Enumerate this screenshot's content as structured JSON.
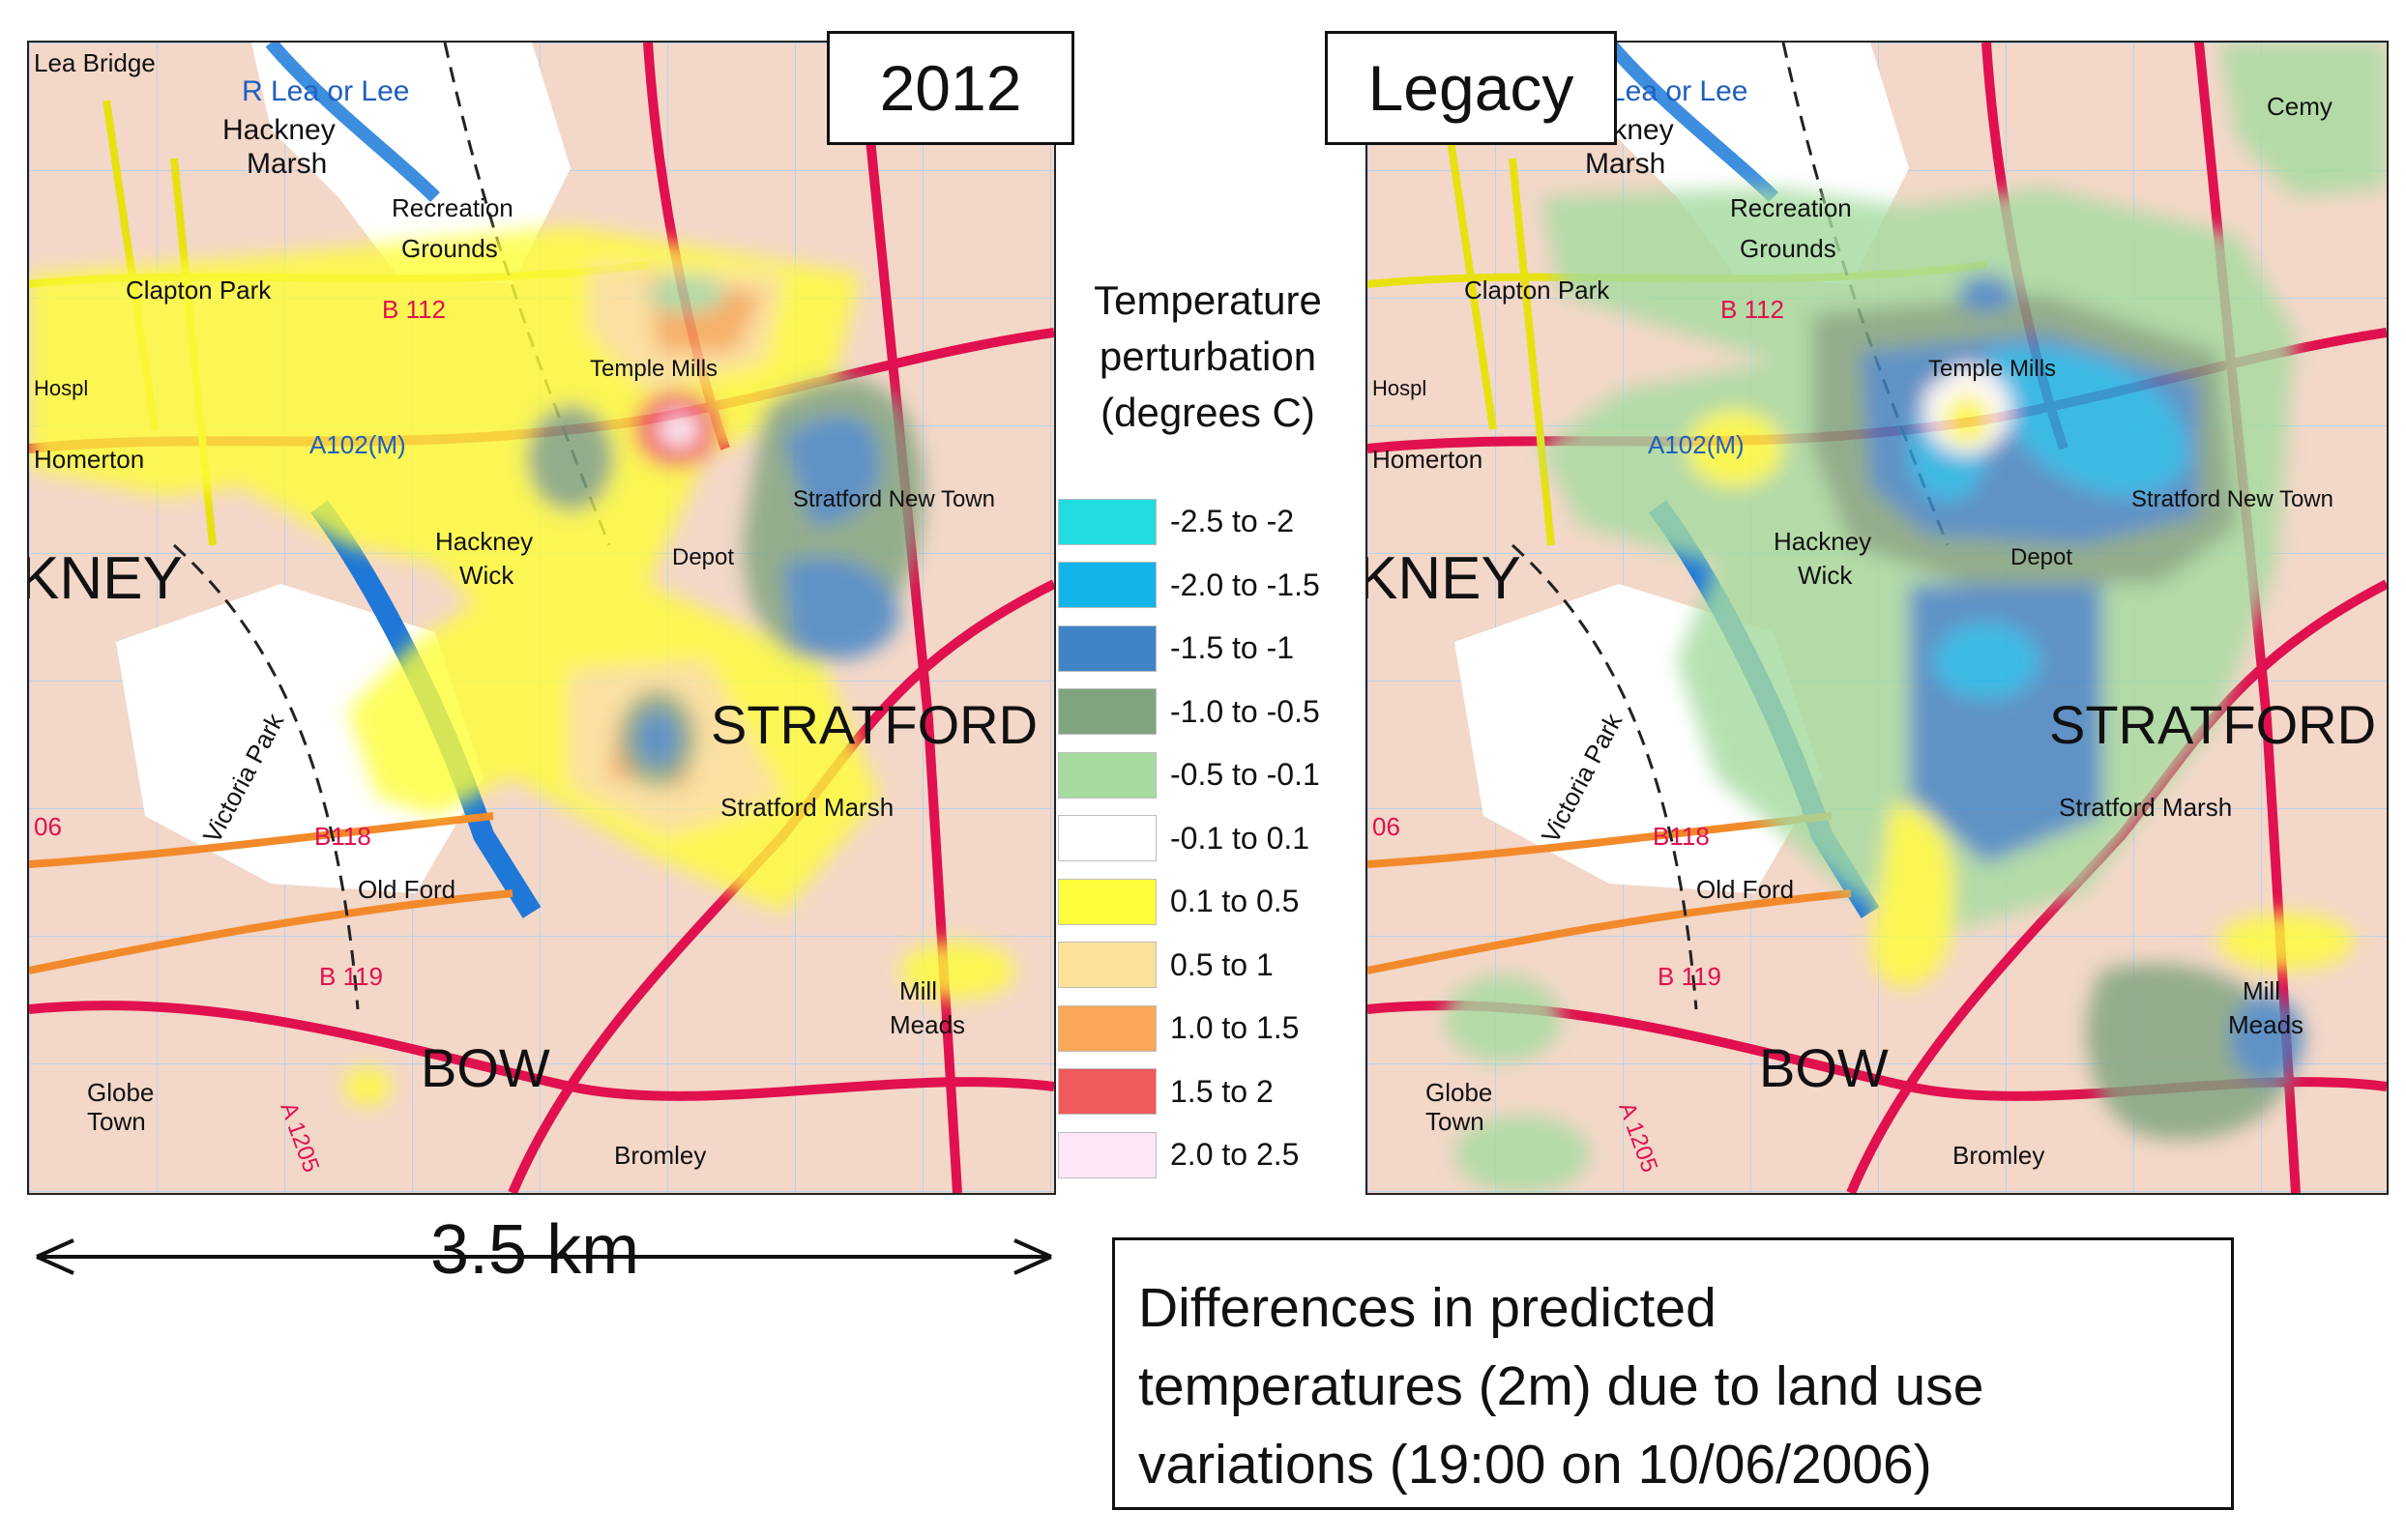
{
  "maps": {
    "left_title": "2012",
    "right_title": "Legacy",
    "labels": {
      "lea_bridge": "Lea Bridge",
      "r_lea": "R Lea or Lee",
      "hackney_marsh_1": "Hackney",
      "hackney_marsh_2": "Marsh",
      "recreation_1": "Recreation",
      "recreation_2": "Grounds",
      "clapton_park": "Clapton Park",
      "b112": "B 112",
      "temple_mills": "Temple Mills",
      "hospl": "Hospl",
      "a102m": "A102(M)",
      "homerton": "Homerton",
      "kney": "KNEY",
      "hackney_wick_1": "Hackney",
      "hackney_wick_2": "Wick",
      "stratford_new_town": "Stratford New Town",
      "depot": "Depot",
      "stratford": "STRATFORD",
      "victoria_park": "Victoria Park",
      "stratford_marsh": "Stratford Marsh",
      "b118": "B118",
      "old_ford": "Old Ford",
      "b119": "B 119",
      "mill_meads_1": "Mill",
      "mill_meads_2": "Meads",
      "bow": "BOW",
      "globe_town_1": "Globe",
      "globe_town_2": "Town",
      "a1205": "A 1205",
      "bromley": "Bromley",
      "cemy": "Cemy",
      "b06": "06"
    }
  },
  "legend": {
    "title_lines": [
      "Temperature",
      "perturbation",
      "(degrees C)"
    ],
    "items": [
      {
        "label": "-2.5 to -2",
        "color": "#22dde0"
      },
      {
        "label": "-2.0 to -1.5",
        "color": "#12b4ea"
      },
      {
        "label": "-1.5 to -1",
        "color": "#3f84c6"
      },
      {
        "label": "-1.0 to -0.5",
        "color": "#7fa47f"
      },
      {
        "label": "-0.5 to -0.1",
        "color": "#a6dba0"
      },
      {
        "label": "-0.1 to 0.1",
        "color": "#ffffff"
      },
      {
        "label": "0.1 to 0.5",
        "color": "#fdfd3a"
      },
      {
        "label": "0.5 to 1",
        "color": "#fde29a"
      },
      {
        "label": "1.0 to 1.5",
        "color": "#f8a857"
      },
      {
        "label": "1.5 to 2",
        "color": "#f15a5a"
      },
      {
        "label": "2.0 to 2.5",
        "color": "#fde6f6"
      }
    ]
  },
  "scale_bar": {
    "label": "3.5 km"
  },
  "caption": {
    "lines": [
      "Differences in predicted",
      "temperatures (2m) due to land use",
      "variations (19:00 on 10/06/2006)"
    ]
  }
}
